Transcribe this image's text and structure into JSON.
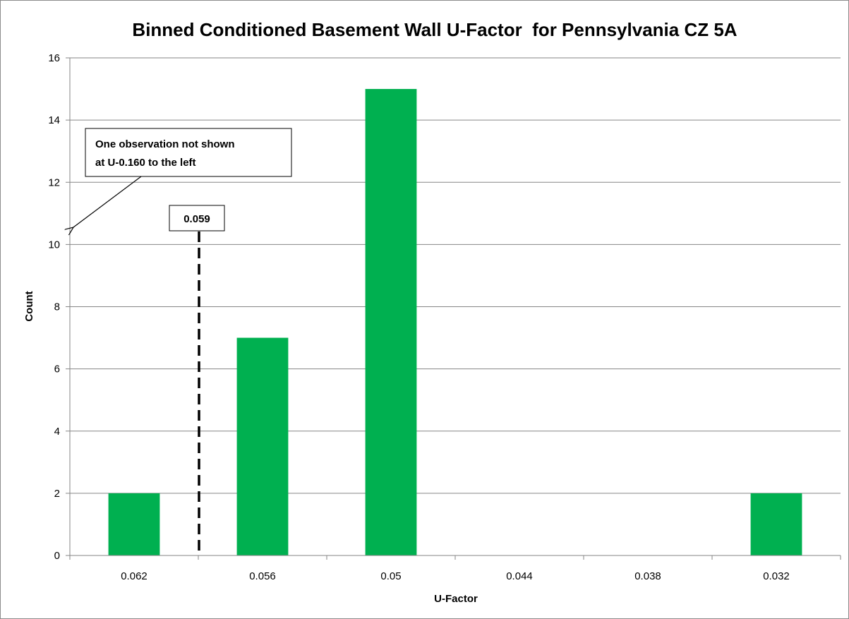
{
  "chart_data": {
    "type": "bar",
    "title": "Binned Conditioned Basement Wall U-Factor  for Pennsylvania CZ 5A",
    "xlabel": "U-Factor",
    "ylabel": "Count",
    "categories": [
      "0.062",
      "0.056",
      "0.05",
      "0.044",
      "0.038",
      "0.032"
    ],
    "values": [
      2,
      7,
      15,
      0,
      0,
      2
    ],
    "ylim": [
      0,
      16
    ],
    "yticks": [
      0,
      2,
      4,
      6,
      8,
      10,
      12,
      14,
      16
    ],
    "ytick_labels": [
      "0",
      "2",
      "4",
      "6",
      "8",
      "10",
      "12",
      "14",
      "16"
    ],
    "grid": true,
    "bar_color": "#00b050",
    "reference_line": {
      "value": 0.059,
      "label": "0.059",
      "style": "dashed"
    },
    "annotation": {
      "lines": [
        "One observation not shown",
        "at U-0.160 to the left"
      ]
    }
  }
}
